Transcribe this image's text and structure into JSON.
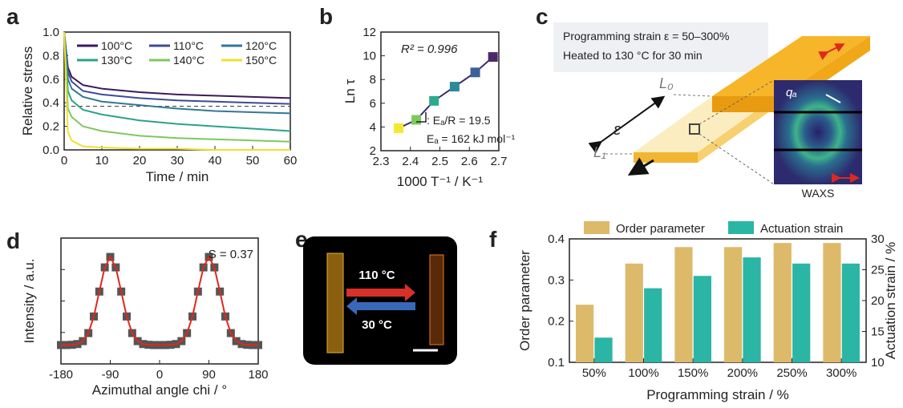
{
  "chart_data": [
    {
      "type": "line",
      "label": "a",
      "xlabel": "Time / min",
      "ylabel": "Relative stress",
      "x": [
        0,
        1,
        2,
        5,
        10,
        20,
        30,
        40,
        50,
        60
      ],
      "series": [
        {
          "name": "100°C",
          "color": "#3b1a5a",
          "values": [
            1.0,
            0.7,
            0.62,
            0.55,
            0.52,
            0.49,
            0.47,
            0.46,
            0.45,
            0.44
          ]
        },
        {
          "name": "110°C",
          "color": "#3f4a96",
          "values": [
            1.0,
            0.66,
            0.58,
            0.5,
            0.47,
            0.44,
            0.42,
            0.41,
            0.4,
            0.39
          ]
        },
        {
          "name": "120°C",
          "color": "#33769a",
          "values": [
            1.0,
            0.6,
            0.52,
            0.45,
            0.41,
            0.38,
            0.35,
            0.33,
            0.32,
            0.31
          ]
        },
        {
          "name": "130°C",
          "color": "#2aa386",
          "values": [
            1.0,
            0.5,
            0.42,
            0.34,
            0.3,
            0.25,
            0.22,
            0.2,
            0.18,
            0.16
          ]
        },
        {
          "name": "140°C",
          "color": "#7ec860",
          "values": [
            1.0,
            0.35,
            0.28,
            0.2,
            0.16,
            0.12,
            0.1,
            0.09,
            0.08,
            0.07
          ]
        },
        {
          "name": "150°C",
          "color": "#f0e030",
          "values": [
            1.0,
            0.15,
            0.08,
            0.03,
            0.02,
            0.01,
            0.01,
            0.0,
            0.0,
            0.0
          ]
        }
      ],
      "hline": 0.37,
      "xlim": [
        0,
        60
      ],
      "xticks": [
        0,
        10,
        20,
        30,
        40,
        50,
        60
      ],
      "ylim": [
        0,
        1
      ],
      "yticks": [
        {
          "value": 0,
          "label": "0.0"
        },
        0.2,
        0.4,
        0.6,
        0.8,
        {
          "value": 1,
          "label": "1.0"
        }
      ]
    },
    {
      "type": "scatter",
      "label": "b",
      "xlabel": "1000 T⁻¹ / K⁻¹",
      "ylabel": "Ln τ",
      "x": [
        2.36,
        2.42,
        2.48,
        2.55,
        2.62,
        2.68
      ],
      "values": [
        3.9,
        4.6,
        6.2,
        7.4,
        8.6,
        9.9
      ],
      "colors": [
        "#f5e82e",
        "#7ec860",
        "#2aab8c",
        "#2b8a9a",
        "#3d5f9a",
        "#4b2a6a"
      ],
      "line_color": "#3d2a70",
      "annotations": [
        "R² = 0.996",
        ": Eₐ/R = 19.5",
        "Eₐ = 162 kJ mol⁻¹"
      ],
      "xlim": [
        2.3,
        2.7
      ],
      "xticks": [
        2.3,
        2.4,
        2.5,
        2.6,
        2.7
      ],
      "ylim": [
        2,
        12
      ],
      "yticks": [
        2,
        4,
        6,
        8,
        10,
        12
      ]
    },
    {
      "type": "line",
      "label": "d",
      "xlabel": "Azimuthal angle chi / °",
      "ylabel": "Intensity / a.u.",
      "x": [
        -180,
        -170,
        -160,
        -150,
        -140,
        -130,
        -120,
        -110,
        -100,
        -90,
        -80,
        -70,
        -60,
        -50,
        -40,
        -30,
        -20,
        -10,
        0,
        10,
        20,
        30,
        40,
        50,
        60,
        70,
        80,
        90,
        100,
        110,
        120,
        130,
        140,
        150,
        160,
        170,
        180
      ],
      "values": [
        0.15,
        0.15,
        0.152,
        0.158,
        0.181,
        0.245,
        0.377,
        0.575,
        0.767,
        0.85,
        0.767,
        0.575,
        0.377,
        0.245,
        0.181,
        0.158,
        0.152,
        0.15,
        0.15,
        0.15,
        0.152,
        0.158,
        0.181,
        0.245,
        0.377,
        0.575,
        0.767,
        0.85,
        0.767,
        0.575,
        0.377,
        0.245,
        0.181,
        0.158,
        0.152,
        0.15,
        0.15
      ],
      "line_color": "#e0281e",
      "marker_color": "#555555",
      "annotations": [
        "S = 0.37"
      ],
      "xlim": [
        -180,
        180
      ],
      "xticks": [
        -180,
        -90,
        0,
        90,
        180
      ],
      "ylim": [
        0,
        1
      ]
    },
    {
      "type": "bar",
      "label": "f",
      "xlabel": "Programming strain / %",
      "ylabel": "Order parameter",
      "y2label": "Actuation strain / %",
      "categories": [
        "50%",
        "100%",
        "150%",
        "200%",
        "250%",
        "300%"
      ],
      "series": [
        {
          "name": "Order parameter",
          "color": "#ddb96a",
          "values": [
            0.24,
            0.34,
            0.38,
            0.38,
            0.39,
            0.39
          ]
        },
        {
          "name": "Actuation strain",
          "color": "#2bb5a5",
          "axis": "y2",
          "values": [
            14,
            22,
            24,
            27,
            26,
            26
          ]
        }
      ],
      "ylim": [
        0.1,
        0.4
      ],
      "yticks": [
        0.1,
        0.2,
        0.3,
        0.4
      ],
      "y2lim": [
        10,
        30
      ],
      "y2ticks": [
        10,
        15,
        20,
        25,
        30
      ]
    }
  ],
  "diagram_c": {
    "label": "c",
    "lines": [
      "Programming strain ε = 50–300%",
      "Heated to 130 °C for 30 min"
    ],
    "l0": "L₀",
    "l1": "L₁",
    "epsilon": "ε",
    "q": "qₐ",
    "waxs": "WAXS"
  },
  "photo_e": {
    "label": "e",
    "hot": "110 °C",
    "cold": "30 °C"
  }
}
